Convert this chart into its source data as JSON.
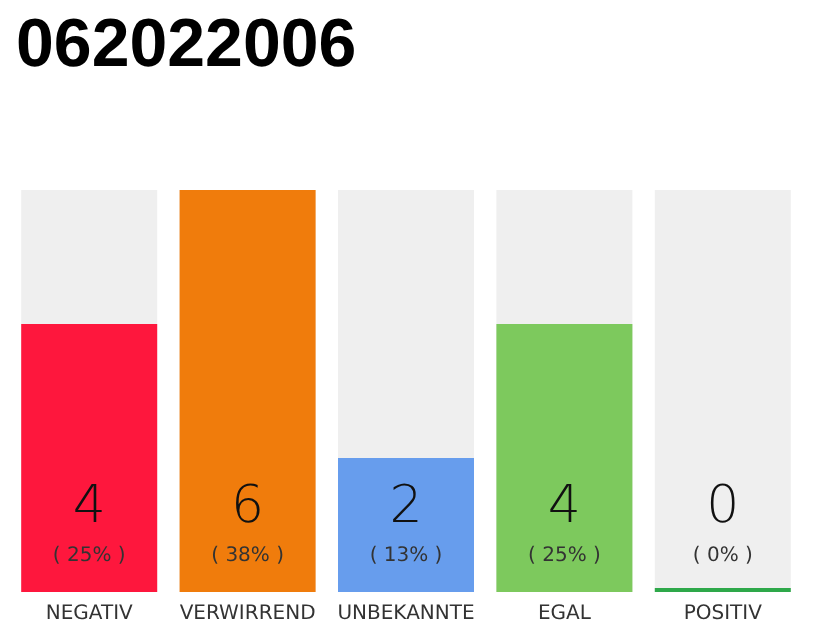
{
  "chart_data": {
    "type": "bar",
    "title": "062022006",
    "categories": [
      "NEGATIV",
      "VERWIRREND",
      "UNBEKANNTE",
      "EGAL",
      "POSITIV"
    ],
    "values": [
      4,
      6,
      2,
      4,
      0
    ],
    "colors": [
      "#fe173d",
      "#f07c0c",
      "#679ded",
      "#7dc95d",
      "#2ea84a"
    ],
    "value_labels": [
      "4\n( 25% )",
      "6\n( 38% )",
      "2\n( 13% )",
      "4\n( 25% )",
      "0\n( 0% )"
    ]
  }
}
